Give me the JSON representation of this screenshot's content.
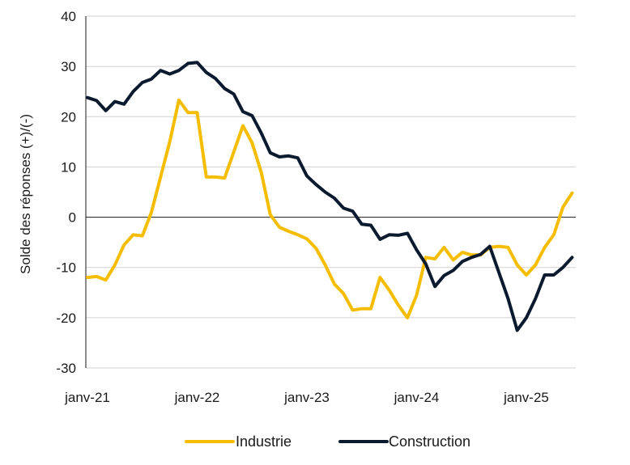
{
  "chart_data": {
    "type": "line",
    "title": "",
    "xlabel": "",
    "ylabel": "Solde des réponses (+)/(-)",
    "ylim": [
      -30,
      40
    ],
    "yticks": [
      -30,
      -20,
      -10,
      0,
      10,
      20,
      30,
      40
    ],
    "x_ticks": [
      "janv-21",
      "janv-22",
      "janv-23",
      "janv-24",
      "janv-25"
    ],
    "x_start": "2021-01",
    "grid": true,
    "legend_position": "bottom",
    "series": [
      {
        "name": "Industrie",
        "color": "#F5BD00",
        "values": [
          -12,
          -11.8,
          -12.5,
          -9.5,
          -5.5,
          -3.5,
          -3.7,
          1,
          8,
          15,
          23.3,
          20.8,
          20.8,
          8,
          8,
          7.8,
          13,
          18.2,
          14.8,
          9,
          0.5,
          -2,
          -2.8,
          -3.5,
          -4.3,
          -6.2,
          -9.5,
          -13.3,
          -15.2,
          -18.5,
          -18.2,
          -18.2,
          -12,
          -14.5,
          -17.5,
          -20,
          -15.5,
          -8,
          -8.3,
          -6,
          -8.5,
          -7,
          -7.5,
          -7.5,
          -6,
          -5.8,
          -6,
          -9.5,
          -11.5,
          -9.5,
          -6,
          -3.5,
          2,
          4.8
        ]
      },
      {
        "name": "Construction",
        "color": "#0B1A2E",
        "values": [
          23.8,
          23.2,
          21.2,
          23,
          22.5,
          25,
          26.8,
          27.5,
          29.2,
          28.5,
          29.2,
          30.6,
          30.8,
          28.8,
          27.6,
          25.6,
          24.5,
          21,
          20.2,
          16.8,
          12.8,
          12,
          12.2,
          11.8,
          8.2,
          6.5,
          5,
          3.8,
          1.8,
          1.2,
          -1.4,
          -1.6,
          -4.4,
          -3.5,
          -3.6,
          -3.2,
          -6.5,
          -9.3,
          -13.8,
          -11.6,
          -10.6,
          -8.8,
          -8,
          -7.4,
          -5.8,
          -11,
          -16.2,
          -22.5,
          -20,
          -16.2,
          -11.5,
          -11.5,
          -10,
          -8
        ]
      }
    ]
  }
}
